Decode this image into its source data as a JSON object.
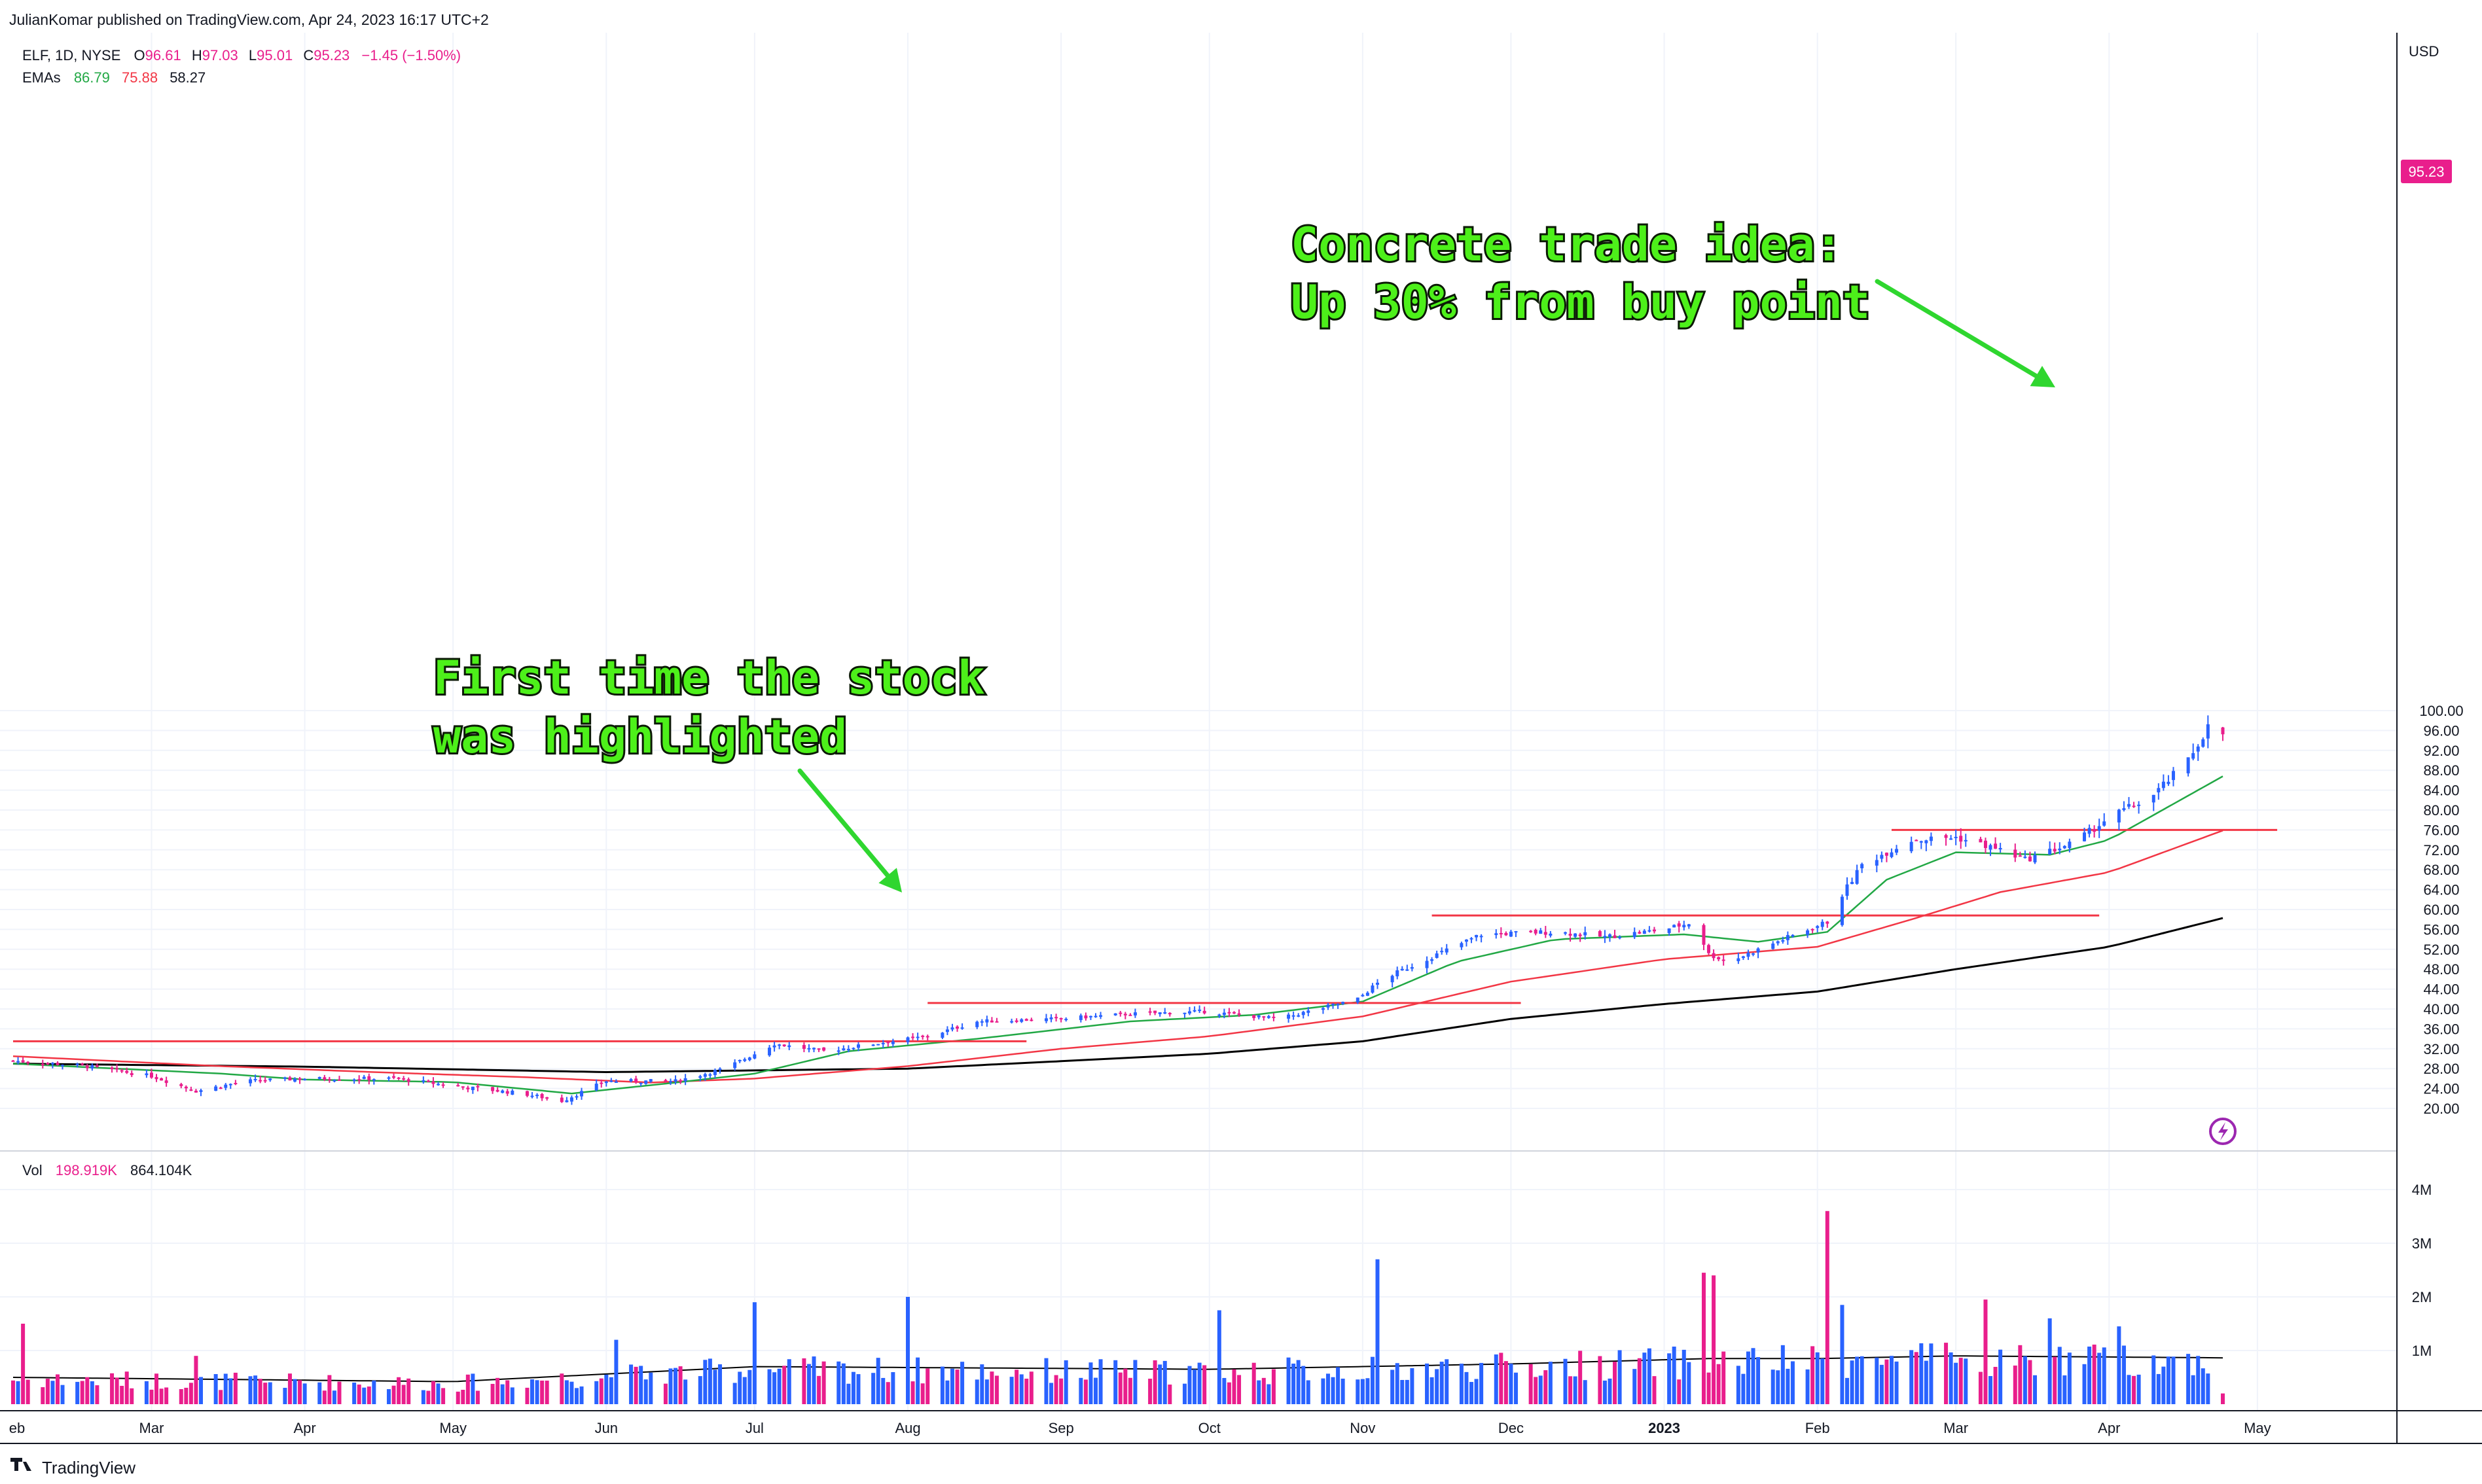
{
  "header": {
    "publisher_line": "JulianKomar published on TradingView.com, Apr 24, 2023 16:17 UTC+2",
    "symbol_line": "ELF, 1D, NYSE",
    "ohlc": {
      "open_label": "O",
      "open": "96.61",
      "high_label": "H",
      "high": "97.03",
      "low_label": "L",
      "low": "95.01",
      "close_label": "C",
      "close": "95.23",
      "change": "−1.45 (−1.50%)"
    },
    "emas_label": "EMAs",
    "ema_values": [
      "86.79",
      "75.88",
      "58.27"
    ]
  },
  "volume_legend": {
    "label": "Vol",
    "value": "198.919K",
    "ma_value": "864.104K"
  },
  "footer": {
    "brand": "TradingView"
  },
  "currency": "USD",
  "price_badge": "95.23",
  "colors": {
    "up": "#2962ff",
    "down": "#e91e8c",
    "ema_fast": "#22a845",
    "ema_mid": "#f23645",
    "ema_slow": "#000000",
    "resistance": "#f23645",
    "annotation": "#4df01a",
    "arrow": "#2fd62f",
    "grid": "#f0f3fa"
  },
  "chart_data": {
    "type": "candlestick",
    "symbol": "ELF",
    "interval": "1D",
    "exchange": "NYSE",
    "price_axis": {
      "ticks": [
        "20.00",
        "24.00",
        "28.00",
        "32.00",
        "36.00",
        "40.00",
        "44.00",
        "48.00",
        "52.00",
        "56.00",
        "60.00",
        "64.00",
        "68.00",
        "72.00",
        "76.00",
        "80.00",
        "84.00",
        "88.00",
        "92.00",
        "96.00",
        "100.00"
      ],
      "range": [
        17.5,
        103.5
      ]
    },
    "volume_axis": {
      "ticks": [
        "1M",
        "2M",
        "3M",
        "4M"
      ]
    },
    "time_axis": {
      "labels": [
        "eb",
        "Mar",
        "Apr",
        "May",
        "Jun",
        "Jul",
        "Aug",
        "Sep",
        "Oct",
        "Nov",
        "Dec",
        "2023",
        "Feb",
        "Mar",
        "Apr",
        "May"
      ]
    },
    "price_path": [
      [
        "2022-02-01",
        29.6
      ],
      [
        "2022-02-15",
        28.6
      ],
      [
        "2022-03-01",
        26.5
      ],
      [
        "2022-03-10",
        23.5
      ],
      [
        "2022-03-20",
        25.5
      ],
      [
        "2022-04-01",
        26.0
      ],
      [
        "2022-04-20",
        26.0
      ],
      [
        "2022-05-01",
        24.5
      ],
      [
        "2022-05-15",
        23.0
      ],
      [
        "2022-05-23",
        21.5
      ],
      [
        "2022-06-01",
        25.5
      ],
      [
        "2022-06-15",
        25.5
      ],
      [
        "2022-06-25",
        28.0
      ],
      [
        "2022-07-05",
        33.0
      ],
      [
        "2022-07-15",
        31.5
      ],
      [
        "2022-07-25",
        33.0
      ],
      [
        "2022-08-05",
        34.5
      ],
      [
        "2022-08-15",
        37.5
      ],
      [
        "2022-08-31",
        38.0
      ],
      [
        "2022-09-15",
        39.0
      ],
      [
        "2022-09-30",
        39.5
      ],
      [
        "2022-10-15",
        38.0
      ],
      [
        "2022-10-31",
        42.0
      ],
      [
        "2022-11-05",
        46.0
      ],
      [
        "2022-11-15",
        50.5
      ],
      [
        "2022-11-25",
        55.0
      ],
      [
        "2022-12-10",
        55.5
      ],
      [
        "2022-12-20",
        54.5
      ],
      [
        "2023-01-01",
        56.0
      ],
      [
        "2023-01-07",
        57.5
      ],
      [
        "2023-01-10",
        51.0
      ],
      [
        "2023-01-14",
        49.5
      ],
      [
        "2023-01-25",
        54.0
      ],
      [
        "2023-02-03",
        57.5
      ],
      [
        "2023-02-06",
        63.0
      ],
      [
        "2023-02-10",
        69.0
      ],
      [
        "2023-02-20",
        74.0
      ],
      [
        "2023-03-01",
        74.5
      ],
      [
        "2023-03-10",
        72.0
      ],
      [
        "2023-03-15",
        70.0
      ],
      [
        "2023-03-25",
        73.5
      ],
      [
        "2023-04-01",
        78.5
      ],
      [
        "2023-04-10",
        83.0
      ],
      [
        "2023-04-17",
        90.0
      ],
      [
        "2023-04-21",
        96.68
      ],
      [
        "2023-04-24",
        95.23
      ]
    ],
    "ema_fast_path": [
      [
        "2022-02-01",
        29.0
      ],
      [
        "2022-03-15",
        27.0
      ],
      [
        "2022-04-01",
        25.8
      ],
      [
        "2022-05-01",
        25.3
      ],
      [
        "2022-05-25",
        23.0
      ],
      [
        "2022-06-15",
        25.2
      ],
      [
        "2022-07-01",
        27.0
      ],
      [
        "2022-07-20",
        31.5
      ],
      [
        "2022-08-15",
        34.0
      ],
      [
        "2022-09-15",
        37.5
      ],
      [
        "2022-10-10",
        38.8
      ],
      [
        "2022-11-01",
        41.5
      ],
      [
        "2022-11-20",
        49.5
      ],
      [
        "2022-12-10",
        54.0
      ],
      [
        "2023-01-05",
        55.0
      ],
      [
        "2023-01-20",
        53.5
      ],
      [
        "2023-02-03",
        55.5
      ],
      [
        "2023-02-15",
        66.0
      ],
      [
        "2023-03-01",
        71.5
      ],
      [
        "2023-03-20",
        71.0
      ],
      [
        "2023-04-01",
        74.0
      ],
      [
        "2023-04-10",
        79.0
      ],
      [
        "2023-04-24",
        86.79
      ]
    ],
    "ema_mid_path": [
      [
        "2022-02-01",
        30.5
      ],
      [
        "2022-03-15",
        28.5
      ],
      [
        "2022-04-15",
        27.3
      ],
      [
        "2022-05-15",
        26.3
      ],
      [
        "2022-06-10",
        25.2
      ],
      [
        "2022-07-01",
        26.0
      ],
      [
        "2022-08-01",
        28.5
      ],
      [
        "2022-09-01",
        32.0
      ],
      [
        "2022-10-01",
        34.5
      ],
      [
        "2022-11-01",
        38.5
      ],
      [
        "2022-12-01",
        45.5
      ],
      [
        "2023-01-01",
        50.0
      ],
      [
        "2023-02-01",
        52.5
      ],
      [
        "2023-02-20",
        58.0
      ],
      [
        "2023-03-10",
        63.5
      ],
      [
        "2023-04-01",
        67.5
      ],
      [
        "2023-04-24",
        75.88
      ]
    ],
    "ema_slow_path": [
      [
        "2022-02-01",
        29.0
      ],
      [
        "2022-04-01",
        28.4
      ],
      [
        "2022-06-01",
        27.3
      ],
      [
        "2022-08-01",
        28.0
      ],
      [
        "2022-09-01",
        29.5
      ],
      [
        "2022-10-01",
        31.0
      ],
      [
        "2022-11-01",
        33.5
      ],
      [
        "2022-12-01",
        38.0
      ],
      [
        "2023-01-01",
        41.0
      ],
      [
        "2023-02-01",
        43.5
      ],
      [
        "2023-03-01",
        48.0
      ],
      [
        "2023-04-01",
        52.5
      ],
      [
        "2023-04-24",
        58.27
      ]
    ],
    "volume_ma_path": [
      [
        "2022-02-01",
        0.5
      ],
      [
        "2022-05-01",
        0.42
      ],
      [
        "2022-07-01",
        0.7
      ],
      [
        "2022-10-01",
        0.65
      ],
      [
        "2022-12-01",
        0.75
      ],
      [
        "2023-01-10",
        0.85
      ],
      [
        "2023-02-01",
        0.85
      ],
      [
        "2023-03-01",
        0.9
      ],
      [
        "2023-04-24",
        0.864
      ]
    ],
    "volume_spikes": [
      [
        "2022-02-03",
        1.5
      ],
      [
        "2022-03-10",
        0.9
      ],
      [
        "2022-06-03",
        1.2
      ],
      [
        "2022-07-01",
        1.9
      ],
      [
        "2022-08-01",
        2.0
      ],
      [
        "2022-10-03",
        1.75
      ],
      [
        "2022-11-04",
        2.7
      ],
      [
        "2023-01-09",
        2.45
      ],
      [
        "2023-01-11",
        2.4
      ],
      [
        "2023-02-03",
        3.6
      ],
      [
        "2023-02-06",
        1.85
      ],
      [
        "2023-03-07",
        1.95
      ],
      [
        "2023-03-20",
        1.6
      ],
      [
        "2023-04-03",
        1.45
      ],
      [
        "2023-04-24",
        0.2
      ]
    ],
    "resistance_lines": [
      {
        "price": 33.5,
        "from": "2022-02-01",
        "to": "2022-08-25"
      },
      {
        "price": 41.2,
        "from": "2022-08-05",
        "to": "2022-12-03"
      },
      {
        "price": 58.8,
        "from": "2022-11-15",
        "to": "2023-03-30"
      },
      {
        "price": 76.0,
        "from": "2023-02-16",
        "to": "2023-05-05"
      }
    ],
    "annotations": [
      {
        "lines": [
          "First time the stock",
          "was highlighted"
        ]
      },
      {
        "lines": [
          "Concrete trade idea:",
          "Up 30% from buy point"
        ]
      }
    ]
  }
}
